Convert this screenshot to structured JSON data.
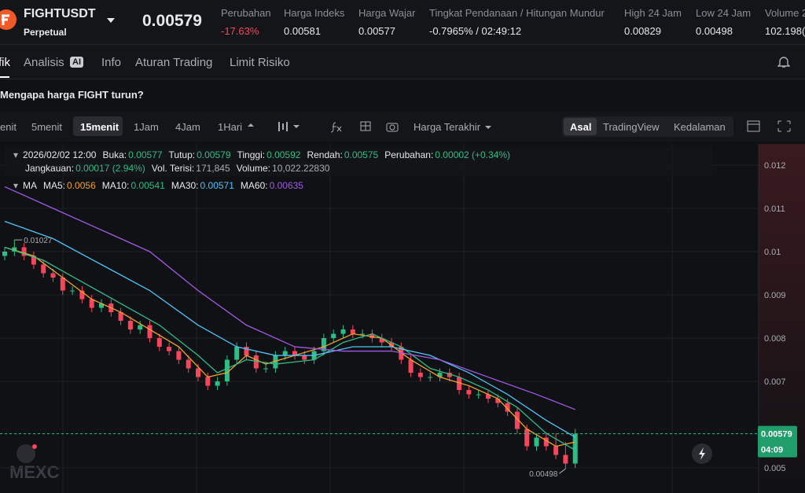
{
  "header": {
    "symbol": "FIGHTUSDT",
    "contract": "Perpetual",
    "price": "0.00579",
    "stats": [
      {
        "label": "Perubahan",
        "value": "-17.63%"
      },
      {
        "label": "Harga Indeks",
        "value": "0.00581"
      },
      {
        "label": "Harga Wajar",
        "value": "0.00577"
      },
      {
        "label": "Tingkat Pendanaan / Hitungan Mundur",
        "value": "-0.7965% / 02:49:12"
      },
      {
        "label": "High 24 Jam",
        "value": "0.00829"
      },
      {
        "label": "Low 24 Jam",
        "value": "0.00498"
      },
      {
        "label": "Volume 2",
        "value": "102.198("
      }
    ]
  },
  "tabs": [
    "fik",
    "Analisis",
    "Info",
    "Aturan Trading",
    "Limit Risiko"
  ],
  "ai_badge": "AI",
  "question": "Mengapa harga FIGHT turun?",
  "toolbar": {
    "intervals": [
      "enit",
      "5menit",
      "15menit",
      "1Jam",
      "4Jam",
      "1Hari"
    ],
    "price_type": "Harga Terakhir",
    "views": [
      "Asal",
      "TradingView",
      "Kedalaman"
    ]
  },
  "info": {
    "time": "2026/02/02 12:00",
    "row1": [
      {
        "label": "Buka:",
        "value": "0.00577"
      },
      {
        "label": "Tutup:",
        "value": "0.00579"
      },
      {
        "label": "Tinggi:",
        "value": "0.00592"
      },
      {
        "label": "Rendah:",
        "value": "0.00575"
      },
      {
        "label": "Perubahan:",
        "value": "0.00002 (+0.34%)"
      }
    ],
    "row2": [
      {
        "label": "Jangkauan:",
        "value": "0.00017 (2.94%)"
      },
      {
        "label": "Vol. Terisi:",
        "value": "171,845"
      },
      {
        "label": "Volume:",
        "value": "10,022.22830"
      }
    ]
  },
  "ma_label": "MA",
  "watermark": "MEXC",
  "chart_data": {
    "type": "candlestick",
    "up_color": "#2ebd85",
    "down_color": "#f6465d",
    "ylim": [
      0.00442,
      0.01249
    ],
    "yticks": [
      0.005,
      0.007,
      0.008,
      0.009,
      0.01,
      0.011,
      0.012
    ],
    "open": [
      0.0099,
      0.01,
      0.0101,
      0.0099,
      0.0097,
      0.0095,
      0.0094,
      0.0091,
      0.0091,
      0.0089,
      0.0087,
      0.0088,
      0.0086,
      0.0084,
      0.0082,
      0.0083,
      0.008,
      0.0078,
      0.0077,
      0.0075,
      0.0073,
      0.0071,
      0.0069,
      0.007,
      0.0075,
      0.0078,
      0.0076,
      0.0073,
      0.0073,
      0.0076,
      0.0077,
      0.0076,
      0.0075,
      0.0077,
      0.008,
      0.0081,
      0.0082,
      0.0081,
      0.0081,
      0.008,
      0.0079,
      0.0078,
      0.0075,
      0.0072,
      0.0071,
      0.0071,
      0.0072,
      0.0071,
      0.0068,
      0.0067,
      0.0067,
      0.0066,
      0.0065,
      0.0063,
      0.0059,
      0.0055,
      0.0057,
      0.0055,
      0.0053,
      0.0051
    ],
    "high": [
      0.0101,
      0.01027,
      0.0102,
      0.01,
      0.0098,
      0.0096,
      0.0095,
      0.0092,
      0.0092,
      0.009,
      0.0089,
      0.0089,
      0.0087,
      0.0085,
      0.0084,
      0.0084,
      0.0081,
      0.0079,
      0.0078,
      0.0076,
      0.0074,
      0.0072,
      0.0071,
      0.0076,
      0.0079,
      0.0079,
      0.0077,
      0.0074,
      0.0077,
      0.0078,
      0.0078,
      0.0077,
      0.0078,
      0.0081,
      0.0082,
      0.0083,
      0.0083,
      0.0082,
      0.0082,
      0.0081,
      0.008,
      0.0079,
      0.0076,
      0.0073,
      0.0072,
      0.0073,
      0.0073,
      0.0072,
      0.0069,
      0.0068,
      0.0068,
      0.0067,
      0.0066,
      0.0064,
      0.006,
      0.0058,
      0.0058,
      0.0058,
      0.0056,
      0.0059
    ],
    "low": [
      0.0098,
      0.0099,
      0.0098,
      0.0096,
      0.0094,
      0.0093,
      0.009,
      0.009,
      0.0088,
      0.0086,
      0.0086,
      0.0085,
      0.0083,
      0.0081,
      0.0081,
      0.0079,
      0.0077,
      0.0076,
      0.0074,
      0.0072,
      0.007,
      0.0068,
      0.0068,
      0.0069,
      0.0074,
      0.0075,
      0.0072,
      0.0072,
      0.0072,
      0.0075,
      0.0075,
      0.0074,
      0.0074,
      0.0076,
      0.0079,
      0.008,
      0.008,
      0.008,
      0.0079,
      0.0078,
      0.0077,
      0.0074,
      0.0071,
      0.007,
      0.007,
      0.007,
      0.007,
      0.0067,
      0.0066,
      0.0066,
      0.0065,
      0.0064,
      0.0062,
      0.0058,
      0.0054,
      0.0054,
      0.0054,
      0.0052,
      0.00498,
      0.005
    ],
    "close": [
      0.01,
      0.0101,
      0.0099,
      0.0097,
      0.0095,
      0.0094,
      0.0091,
      0.0091,
      0.0089,
      0.0087,
      0.0088,
      0.0086,
      0.0084,
      0.0082,
      0.0083,
      0.008,
      0.0078,
      0.0077,
      0.0075,
      0.0073,
      0.0071,
      0.0069,
      0.007,
      0.0075,
      0.0078,
      0.0076,
      0.0073,
      0.0073,
      0.0076,
      0.0077,
      0.0076,
      0.0075,
      0.0077,
      0.008,
      0.0081,
      0.0082,
      0.0081,
      0.0081,
      0.008,
      0.0079,
      0.0078,
      0.0075,
      0.0072,
      0.0071,
      0.0071,
      0.0072,
      0.0071,
      0.0068,
      0.0067,
      0.0067,
      0.0066,
      0.0065,
      0.0063,
      0.0059,
      0.0055,
      0.0057,
      0.0055,
      0.0053,
      0.0051,
      0.00579
    ],
    "series": [
      {
        "name": "MA5:",
        "legend_value": "0.0056",
        "color": "#f0a22e",
        "x": [
          0,
          3,
          6,
          9,
          12,
          15,
          18,
          21,
          23,
          25,
          27,
          30,
          33,
          36,
          39,
          42,
          45,
          48,
          51,
          54,
          57,
          59
        ],
        "values": [
          0.0101,
          0.0099,
          0.0094,
          0.0089,
          0.0086,
          0.0082,
          0.0078,
          0.0071,
          0.0072,
          0.0076,
          0.0074,
          0.0076,
          0.0078,
          0.0081,
          0.008,
          0.0075,
          0.0071,
          0.0069,
          0.0066,
          0.0059,
          0.0055,
          0.0056
        ]
      },
      {
        "name": "MA10:",
        "legend_value": "0.00541",
        "color": "#2ebd85",
        "x": [
          0,
          4,
          8,
          12,
          16,
          20,
          22,
          25,
          28,
          32,
          35,
          38,
          41,
          44,
          47,
          50,
          53,
          56,
          59
        ],
        "values": [
          0.0101,
          0.0098,
          0.0093,
          0.0088,
          0.0083,
          0.0076,
          0.0072,
          0.0075,
          0.0074,
          0.0075,
          0.0079,
          0.0081,
          0.0078,
          0.0073,
          0.0071,
          0.0068,
          0.0064,
          0.0058,
          0.00541
        ]
      },
      {
        "name": "MA30:",
        "legend_value": "0.00571",
        "color": "#4fc3f7",
        "x": [
          0,
          5,
          10,
          15,
          20,
          24,
          28,
          32,
          36,
          40,
          44,
          48,
          52,
          56,
          59
        ],
        "values": [
          0.0107,
          0.0103,
          0.0097,
          0.0091,
          0.0083,
          0.0078,
          0.0076,
          0.0076,
          0.0078,
          0.0078,
          0.0076,
          0.0072,
          0.0067,
          0.0061,
          0.00571
        ]
      },
      {
        "name": "MA60:",
        "legend_value": "0.00635",
        "color": "#a259e6",
        "x": [
          0,
          5,
          10,
          15,
          20,
          25,
          30,
          35,
          40,
          45,
          50,
          55,
          59
        ],
        "values": [
          0.0115,
          0.011,
          0.0105,
          0.01,
          0.0091,
          0.0083,
          0.0078,
          0.0077,
          0.0077,
          0.0075,
          0.0071,
          0.0067,
          0.00635
        ]
      }
    ],
    "countdown": "04:09"
  }
}
